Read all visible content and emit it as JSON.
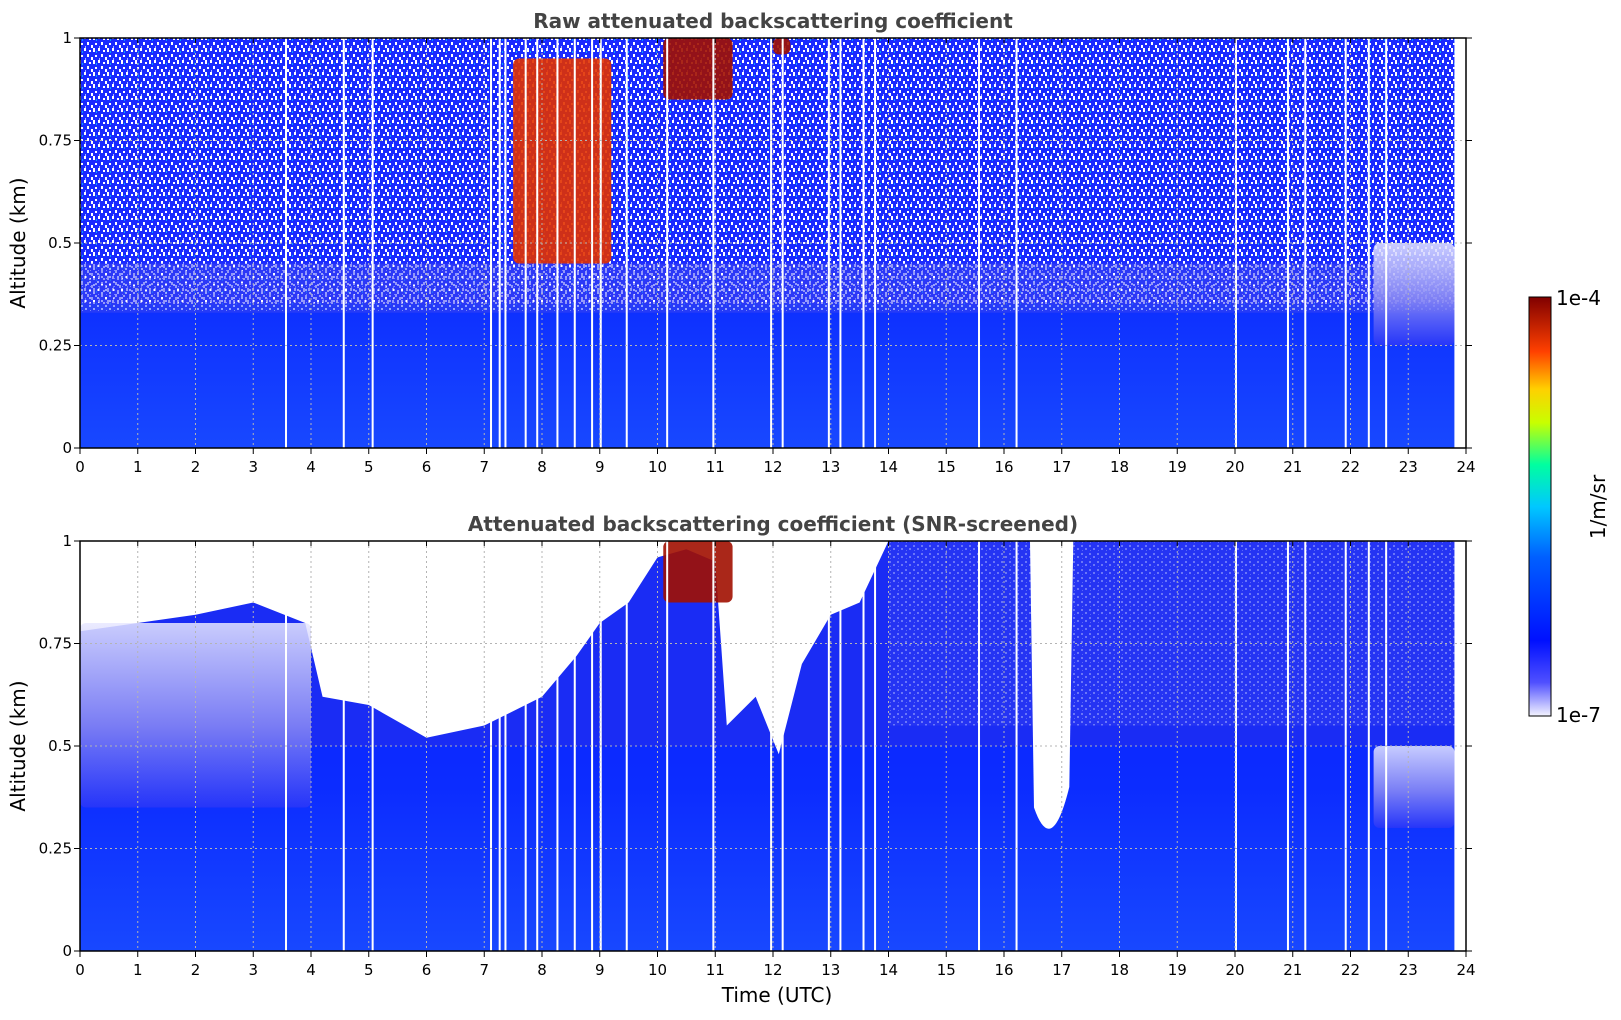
{
  "chart_data": [
    {
      "type": "heatmap",
      "title": "Raw attenuated backscattering coefficient",
      "xlabel": "",
      "ylabel": "Altitude (km)",
      "xlim": [
        0,
        24
      ],
      "ylim": [
        0,
        1
      ],
      "xticks": [
        "0",
        "1",
        "2",
        "3",
        "4",
        "5",
        "6",
        "7",
        "8",
        "9",
        "10",
        "11",
        "12",
        "13",
        "14",
        "15",
        "16",
        "17",
        "18",
        "19",
        "20",
        "21",
        "22",
        "23",
        "24"
      ],
      "yticks": [
        "0",
        "0.25",
        "0.5",
        "0.75",
        "1"
      ],
      "grid": true,
      "data_end_hour": 23.8,
      "data_gaps_hours": [
        3.55,
        4.55,
        5.05,
        7.1,
        7.25,
        7.35,
        7.7,
        7.9,
        8.25,
        8.55,
        8.85,
        9.0,
        9.45,
        10.15,
        10.95,
        11.95,
        12.15,
        12.95,
        13.15,
        13.55,
        13.75,
        15.55,
        16.2,
        20.0,
        20.9,
        21.2,
        21.9,
        22.3,
        22.6
      ],
      "regions": [
        {
          "name": "noise-dominated upper layer",
          "x_range": [
            0,
            23.8
          ],
          "alt_range": [
            0.5,
            1.0
          ],
          "log10_value": -6.7
        },
        {
          "name": "boundary layer",
          "x_range": [
            0,
            23.8
          ],
          "alt_range": [
            0,
            0.35
          ],
          "log10_value": -6.2
        },
        {
          "name": "rising aerosol layer",
          "x_range": [
            7.5,
            9.2
          ],
          "alt_range": [
            0.45,
            0.95
          ],
          "log10_value": -4.3
        },
        {
          "name": "cloud",
          "x_range": [
            10.1,
            11.3
          ],
          "alt_range": [
            0.85,
            1.0
          ],
          "log10_value": -4.1
        },
        {
          "name": "cloud",
          "x_range": [
            12.0,
            12.3
          ],
          "alt_range": [
            0.96,
            1.0
          ],
          "log10_value": -4.1
        },
        {
          "name": "evening residual layer",
          "x_range": [
            22.4,
            23.8
          ],
          "alt_range": [
            0.25,
            0.5
          ],
          "log10_value": -6.8
        }
      ]
    },
    {
      "type": "heatmap",
      "title": "Attenuated backscattering coefficient (SNR-screened)",
      "xlabel": "Time (UTC)",
      "ylabel": "Altitude (km)",
      "xlim": [
        0,
        24
      ],
      "ylim": [
        0,
        1
      ],
      "xticks": [
        "0",
        "1",
        "2",
        "3",
        "4",
        "5",
        "6",
        "7",
        "8",
        "9",
        "10",
        "11",
        "12",
        "13",
        "14",
        "15",
        "16",
        "17",
        "18",
        "19",
        "20",
        "21",
        "22",
        "23",
        "24"
      ],
      "yticks": [
        "0",
        "0.25",
        "0.5",
        "0.75",
        "1"
      ],
      "grid": true,
      "data_end_hour": 23.8,
      "screened_top_km": [
        {
          "x": 0,
          "y": 0.78
        },
        {
          "x": 1,
          "y": 0.8
        },
        {
          "x": 2,
          "y": 0.82
        },
        {
          "x": 3,
          "y": 0.85
        },
        {
          "x": 3.9,
          "y": 0.8
        },
        {
          "x": 4.2,
          "y": 0.62
        },
        {
          "x": 5,
          "y": 0.6
        },
        {
          "x": 6,
          "y": 0.52
        },
        {
          "x": 7,
          "y": 0.55
        },
        {
          "x": 8,
          "y": 0.62
        },
        {
          "x": 8.6,
          "y": 0.72
        },
        {
          "x": 9,
          "y": 0.8
        },
        {
          "x": 9.5,
          "y": 0.85
        },
        {
          "x": 10,
          "y": 0.96
        },
        {
          "x": 10.5,
          "y": 0.98
        },
        {
          "x": 11,
          "y": 0.95
        },
        {
          "x": 11.2,
          "y": 0.55
        },
        {
          "x": 11.7,
          "y": 0.62
        },
        {
          "x": 12.1,
          "y": 0.48
        },
        {
          "x": 12.5,
          "y": 0.7
        },
        {
          "x": 13,
          "y": 0.82
        },
        {
          "x": 13.5,
          "y": 0.85
        },
        {
          "x": 14,
          "y": 1.0
        },
        {
          "x": 23.8,
          "y": 1.0
        }
      ],
      "screened_gap": {
        "x_range": [
          16.45,
          17.2
        ],
        "min_alt_km": 0.25
      },
      "regions": [
        {
          "name": "aerosol layer",
          "x_range": [
            0,
            4
          ],
          "alt_range": [
            0.35,
            0.8
          ],
          "log10_value": -6.8
        },
        {
          "name": "boundary layer",
          "x_range": [
            0,
            23.8
          ],
          "alt_range": [
            0,
            0.35
          ],
          "log10_value": -6.2
        },
        {
          "name": "cloud",
          "x_range": [
            10.1,
            11.3
          ],
          "alt_range": [
            0.85,
            1.0
          ],
          "log10_value": -4.1
        },
        {
          "name": "evening residual layer",
          "x_range": [
            22.4,
            23.8
          ],
          "alt_range": [
            0.3,
            0.5
          ],
          "log10_value": -6.8
        }
      ]
    }
  ],
  "colorbar": {
    "label": "1/m/sr",
    "max_label": "1e-4",
    "min_label": "1e-7",
    "colors": [
      "#ffffff",
      "#0000ff",
      "#00b0ff",
      "#00ffb0",
      "#ffff00",
      "#ff8000",
      "#ff0000",
      "#800000"
    ]
  }
}
